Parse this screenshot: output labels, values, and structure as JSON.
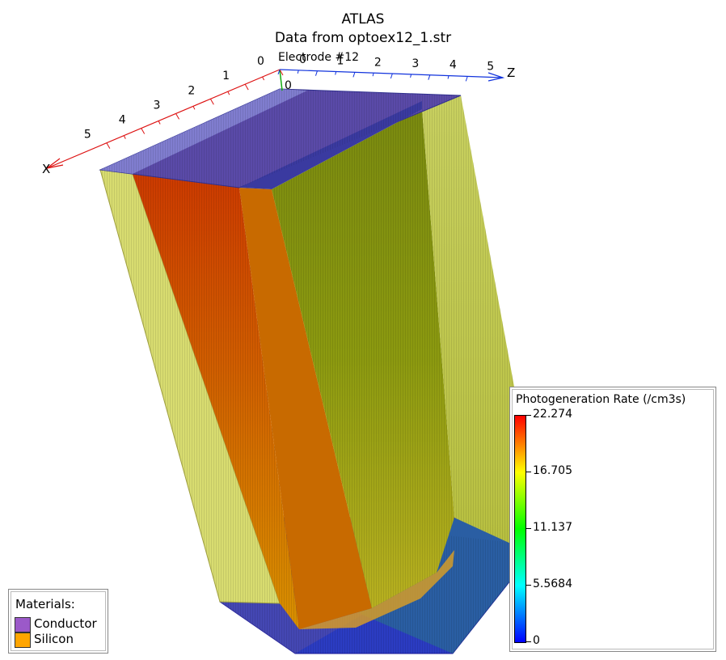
{
  "title": "ATLAS",
  "subtitle": "Data from optoex12_1.str",
  "axes": {
    "x": {
      "label": "X",
      "ticks": [
        "0",
        "1",
        "2",
        "3",
        "4",
        "5"
      ]
    },
    "z": {
      "label": "Z",
      "ticks": [
        "0",
        "1",
        "2",
        "3",
        "4",
        "5"
      ]
    },
    "y": {
      "tick": "0"
    }
  },
  "electrode_label": "Electrode #12",
  "materials": {
    "heading": "Materials:",
    "items": [
      {
        "name": "Conductor",
        "color": "#9b59c9"
      },
      {
        "name": "Silicon",
        "color": "#ffa500"
      }
    ]
  },
  "colorbar": {
    "title": "Photogeneration Rate (/cm3s)",
    "min": 0,
    "max": 22.274,
    "labels": [
      "22.274",
      "16.705",
      "11.137",
      "5.5684",
      "0"
    ],
    "colors": [
      "#ff0000",
      "#ffff00",
      "#00ff00",
      "#00ffff",
      "#0000ff"
    ]
  }
}
